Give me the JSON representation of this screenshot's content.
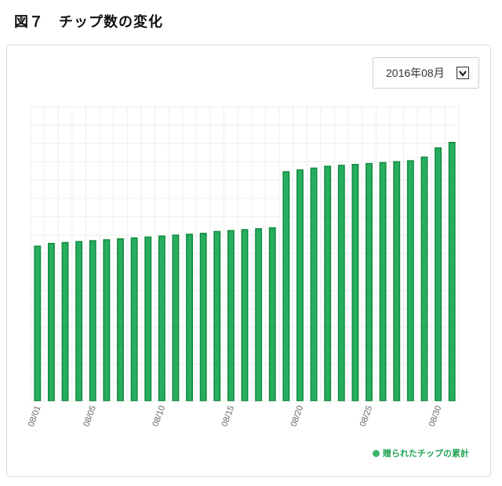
{
  "figure": {
    "title": "図７　チップ数の変化"
  },
  "month_selector": {
    "value": "2016年08月"
  },
  "colors": {
    "bar_fill": "#27ae60",
    "bar_edge": "#138a3f",
    "grid": "#eeeeee",
    "legend_text": "#22a355"
  },
  "chart_data": {
    "type": "bar",
    "categories": [
      "08/01",
      "08/02",
      "08/03",
      "08/04",
      "08/05",
      "08/06",
      "08/07",
      "08/08",
      "08/09",
      "08/10",
      "08/11",
      "08/12",
      "08/13",
      "08/14",
      "08/15",
      "08/16",
      "08/17",
      "08/18",
      "08/19",
      "08/20",
      "08/21",
      "08/22",
      "08/23",
      "08/24",
      "08/25",
      "08/26",
      "08/27",
      "08/28",
      "08/29",
      "08/30",
      "08/31"
    ],
    "tick_labels": [
      "08/01",
      "08/05",
      "08/10",
      "08/15",
      "08/20",
      "08/25",
      "08/30"
    ],
    "series": [
      {
        "name": "贈られたチップの累計",
        "values": [
          8.4,
          8.55,
          8.6,
          8.65,
          8.7,
          8.75,
          8.8,
          8.85,
          8.9,
          8.95,
          9.0,
          9.05,
          9.1,
          9.2,
          9.25,
          9.3,
          9.35,
          9.4,
          12.45,
          12.55,
          12.65,
          12.75,
          12.8,
          12.85,
          12.9,
          12.95,
          13.0,
          13.05,
          13.25,
          13.75,
          14.05
        ]
      }
    ],
    "ylim": [
      0,
      16
    ],
    "y_gridlines": 16,
    "grid": true,
    "legend_position": "bottom-right",
    "xlabel": "",
    "ylabel": ""
  }
}
